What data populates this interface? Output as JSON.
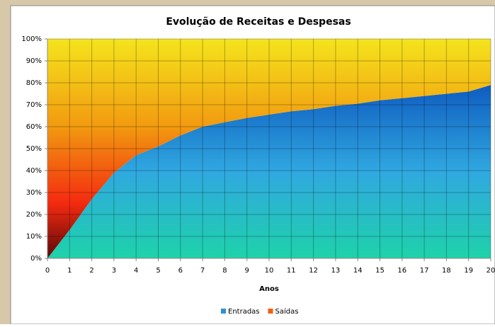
{
  "chart_data": {
    "type": "area_stacked_100",
    "title": "Evolução de Receitas e Despesas",
    "xlabel": "Anos",
    "x": [
      0,
      1,
      2,
      3,
      4,
      5,
      6,
      7,
      8,
      9,
      10,
      11,
      12,
      13,
      14,
      15,
      16,
      17,
      18,
      19,
      20
    ],
    "xlim": [
      0,
      20
    ],
    "xticks": [
      0,
      1,
      2,
      3,
      4,
      5,
      6,
      7,
      8,
      9,
      10,
      11,
      12,
      13,
      14,
      15,
      16,
      17,
      18,
      19,
      20
    ],
    "ylim": [
      0,
      100
    ],
    "yticks": [
      {
        "value": 0,
        "label": "0%"
      },
      {
        "value": 10,
        "label": "10%"
      },
      {
        "value": 20,
        "label": "20%"
      },
      {
        "value": 30,
        "label": "30%"
      },
      {
        "value": 40,
        "label": "40%"
      },
      {
        "value": 50,
        "label": "50%"
      },
      {
        "value": 60,
        "label": "60%"
      },
      {
        "value": 70,
        "label": "70%"
      },
      {
        "value": 80,
        "label": "80%"
      },
      {
        "value": 90,
        "label": "90%"
      },
      {
        "value": 100,
        "label": "100%"
      }
    ],
    "grid": true,
    "legend": "bottom",
    "series": [
      {
        "name": "Entradas",
        "color": "#2e8fd8",
        "values": [
          0,
          13,
          27,
          39,
          47,
          51,
          56,
          60,
          62,
          64,
          65.5,
          67,
          68,
          69.5,
          70.5,
          72,
          73,
          74,
          75,
          76,
          79
        ]
      },
      {
        "name": "Saídas",
        "color": "#f06010",
        "values": [
          100,
          87,
          73,
          61,
          53,
          49,
          44,
          40,
          38,
          36,
          34.5,
          33,
          32,
          30.5,
          29.5,
          28,
          27,
          26,
          25,
          24,
          21
        ]
      }
    ]
  }
}
